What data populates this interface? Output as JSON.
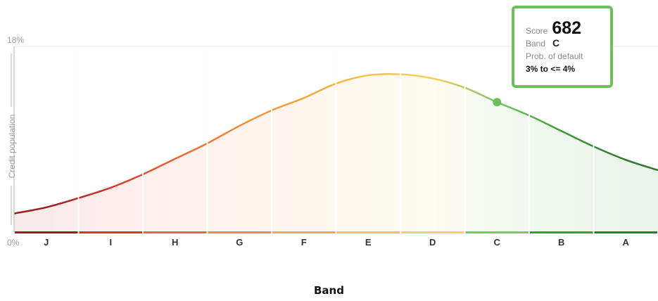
{
  "chart_data": {
    "type": "area",
    "title": "",
    "xlabel": "Band",
    "ylabel": "Credit population",
    "ylim": [
      0,
      18
    ],
    "y_tick_labels": [
      "18%",
      "0%"
    ],
    "categories": [
      "J",
      "I",
      "H",
      "G",
      "F",
      "E",
      "D",
      "C",
      "B",
      "A"
    ],
    "band_colors": [
      "#9b1c1f",
      "#d4392e",
      "#e8643a",
      "#f08a3a",
      "#f4a53e",
      "#f7c14a",
      "#f5d25c",
      "#7cc36a",
      "#3f9a3a",
      "#2e7a2e"
    ],
    "curve": {
      "x": [
        0,
        0.5,
        1,
        1.5,
        2,
        2.5,
        3,
        3.5,
        4,
        4.5,
        5,
        5.5,
        6,
        6.5,
        7,
        7.5,
        8,
        8.5,
        9,
        9.5,
        10
      ],
      "y": [
        1.8,
        2.4,
        3.3,
        4.3,
        5.6,
        7.1,
        8.6,
        10.3,
        11.8,
        13.0,
        14.4,
        15.2,
        15.3,
        14.9,
        14.0,
        12.6,
        11.3,
        9.8,
        8.3,
        7.0,
        6.0
      ]
    },
    "grid": true,
    "marker": {
      "score": 682,
      "band": "C",
      "x": 7.5,
      "y": 12.6
    }
  },
  "tooltip": {
    "score_label": "Score",
    "score_value": "682",
    "band_label": "Band",
    "band_value": "C",
    "prob_label": "Prob. of default",
    "prob_value": "3% to <= 4%"
  },
  "colors": {
    "marker": "#6cbf5b",
    "grid": "#e6e6e6",
    "axis": "#b5b5b5"
  }
}
